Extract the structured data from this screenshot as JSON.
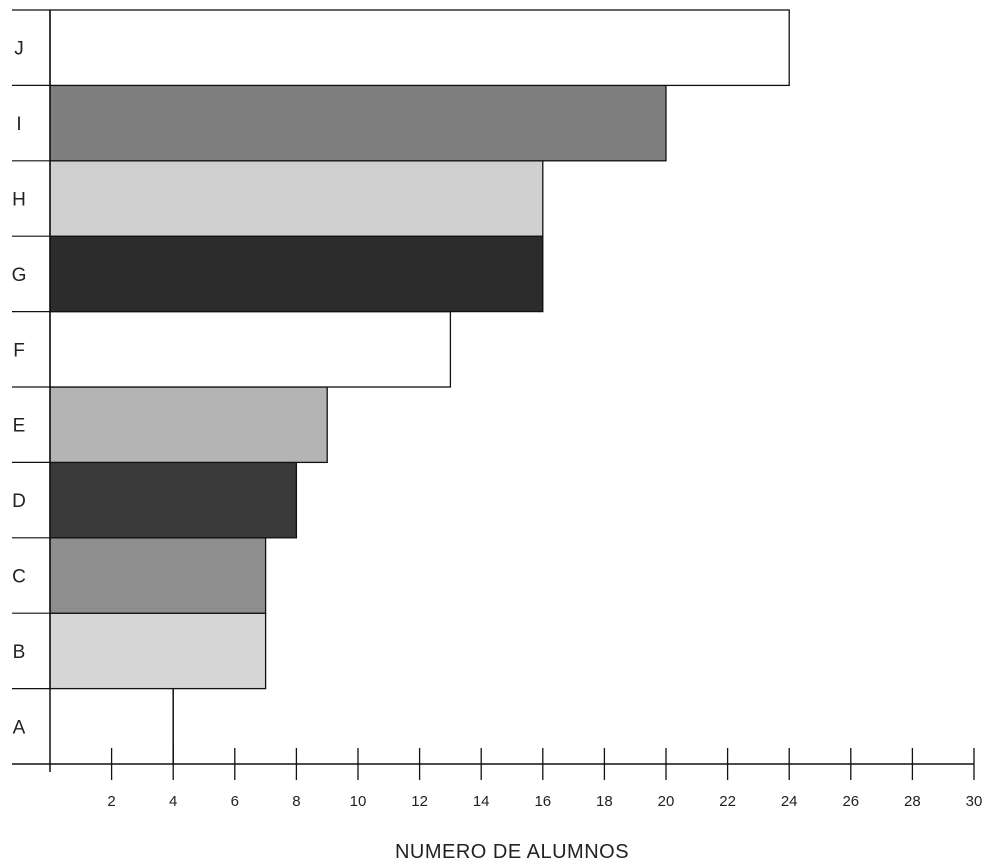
{
  "chart_data": {
    "type": "bar",
    "orientation": "horizontal",
    "categories": [
      "A",
      "B",
      "C",
      "D",
      "E",
      "F",
      "G",
      "H",
      "I",
      "J"
    ],
    "values": [
      4,
      7,
      7,
      8,
      9,
      13,
      16,
      16,
      20,
      24
    ],
    "colors": [
      "#ffffff",
      "#d6d6d6",
      "#8e8e8e",
      "#3a3a3a",
      "#b4b4b4",
      "#ffffff",
      "#2c2c2c",
      "#d0d0d0",
      "#7f7f7f",
      "#ffffff"
    ],
    "xlabel": "NUMERO DE ALUMNOS",
    "xlim": [
      0,
      30
    ],
    "xticks": [
      "2",
      "4",
      "6",
      "8",
      "10",
      "12",
      "14",
      "16",
      "18",
      "20",
      "22",
      "24",
      "26",
      "28",
      "30"
    ],
    "grid": false
  }
}
